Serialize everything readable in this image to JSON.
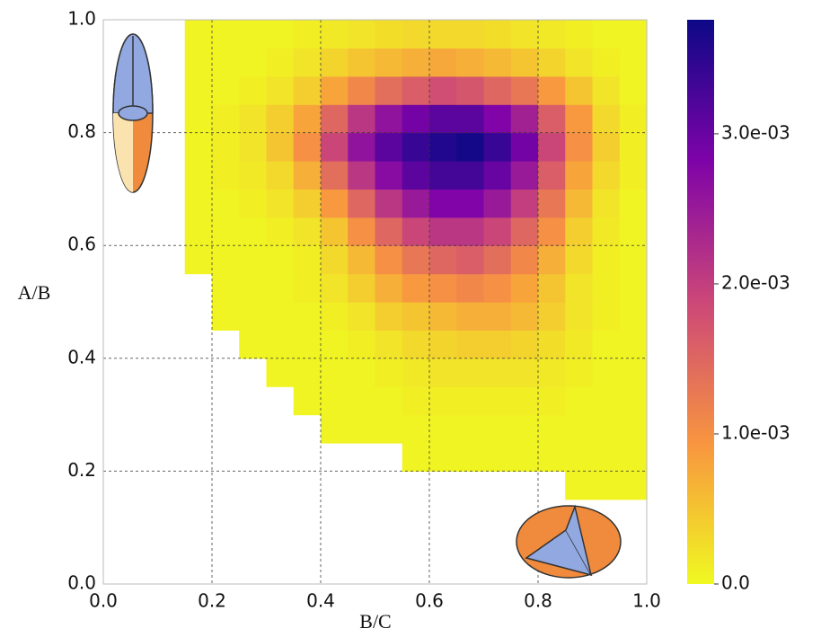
{
  "chart_data": {
    "type": "heatmap",
    "xlabel": "B/C",
    "ylabel": "A/B",
    "xlim": [
      0,
      1
    ],
    "ylim": [
      0,
      1
    ],
    "xticks": [
      {
        "value": 0,
        "label": "0.0"
      },
      0.2,
      0.4,
      0.6,
      0.8,
      {
        "value": 1,
        "label": "1.0"
      }
    ],
    "yticks": [
      {
        "value": 0,
        "label": "0.0"
      },
      0.2,
      0.4,
      0.6,
      0.8,
      {
        "value": 1,
        "label": "1.0"
      }
    ],
    "grid": true,
    "xbins": [
      0,
      0.05,
      0.1,
      0.15,
      0.2,
      0.25,
      0.3,
      0.35,
      0.4,
      0.45,
      0.5,
      0.55,
      0.6,
      0.65,
      0.7,
      0.75,
      0.8,
      0.85,
      0.9,
      0.95,
      1
    ],
    "ybins": [
      0,
      0.05,
      0.1,
      0.15,
      0.2,
      0.25,
      0.3,
      0.35,
      0.4,
      0.45,
      0.5,
      0.55,
      0.6,
      0.65,
      0.7,
      0.75,
      0.8,
      0.85,
      0.9,
      0.95,
      1
    ],
    "clim": [
      0,
      0.00376
    ],
    "colorbar_ticks": [
      {
        "value": 0,
        "label": "0.0"
      },
      {
        "value": 0.001,
        "label": "1.0e-03"
      },
      {
        "value": 0.002,
        "label": "2.0e-03"
      },
      {
        "value": 0.003,
        "label": "3.0e-03"
      }
    ],
    "colormap": [
      "#f0f921",
      "#f89540",
      "#cc4778",
      "#7e03a8",
      "#0d0887"
    ],
    "values": [
      [
        null,
        null,
        null,
        null,
        null,
        null,
        null,
        null,
        null,
        null,
        null,
        null,
        null,
        null,
        null,
        null,
        null,
        null,
        null,
        null
      ],
      [
        null,
        null,
        null,
        null,
        null,
        null,
        null,
        null,
        null,
        null,
        null,
        null,
        null,
        null,
        null,
        null,
        null,
        null,
        null,
        null
      ],
      [
        null,
        null,
        null,
        null,
        null,
        null,
        null,
        null,
        null,
        null,
        null,
        null,
        null,
        null,
        null,
        null,
        null,
        null,
        null,
        null
      ],
      [
        null,
        null,
        null,
        null,
        null,
        null,
        null,
        null,
        null,
        null,
        null,
        null,
        null,
        null,
        null,
        null,
        null,
        5e-05,
        5e-05,
        5e-05
      ],
      [
        null,
        null,
        null,
        null,
        null,
        null,
        null,
        null,
        null,
        null,
        null,
        5e-05,
        5e-05,
        5e-05,
        5e-05,
        5e-05,
        5e-05,
        5e-05,
        5e-05,
        5e-05
      ],
      [
        null,
        null,
        null,
        null,
        null,
        null,
        null,
        null,
        5e-05,
        5e-05,
        5e-05,
        5e-05,
        5e-05,
        5e-05,
        5e-05,
        5e-05,
        5e-05,
        5e-05,
        5e-05,
        5e-05
      ],
      [
        null,
        null,
        null,
        null,
        null,
        null,
        null,
        5e-05,
        5e-05,
        5e-05,
        5e-05,
        0.0001,
        0.0001,
        0.0001,
        0.0001,
        0.0001,
        0.0001,
        5e-05,
        5e-05,
        5e-05
      ],
      [
        null,
        null,
        null,
        null,
        null,
        null,
        5e-05,
        5e-05,
        5e-05,
        5e-05,
        0.0001,
        0.00015,
        0.0002,
        0.0002,
        0.0002,
        0.0002,
        0.00015,
        0.0001,
        5e-05,
        5e-05
      ],
      [
        null,
        null,
        null,
        null,
        null,
        5e-05,
        5e-05,
        5e-05,
        5e-05,
        0.0001,
        0.0002,
        0.0003,
        0.00035,
        0.0004,
        0.0004,
        0.00035,
        0.00025,
        0.00015,
        5e-05,
        5e-05
      ],
      [
        null,
        null,
        null,
        null,
        5e-05,
        5e-05,
        5e-05,
        5e-05,
        0.0001,
        0.0002,
        0.0004,
        0.0005,
        0.0006,
        0.0007,
        0.0007,
        0.0006,
        0.0004,
        0.0002,
        0.0001,
        5e-05
      ],
      [
        null,
        null,
        null,
        null,
        5e-05,
        5e-05,
        5e-05,
        0.0001,
        0.0002,
        0.0004,
        0.0007,
        0.0009,
        0.001,
        0.0011,
        0.001,
        0.0008,
        0.0005,
        0.0002,
        0.0001,
        5e-05
      ],
      [
        null,
        null,
        null,
        5e-05,
        5e-05,
        5e-05,
        5e-05,
        0.0001,
        0.0003,
        0.0006,
        0.001,
        0.0013,
        0.0015,
        0.0016,
        0.0014,
        0.0011,
        0.0007,
        0.0003,
        0.0001,
        5e-05
      ],
      [
        null,
        null,
        null,
        5e-05,
        5e-05,
        5e-05,
        0.0001,
        0.0002,
        0.0005,
        0.001,
        0.0015,
        0.0019,
        0.0021,
        0.0021,
        0.0019,
        0.0015,
        0.001,
        0.0004,
        0.00015,
        5e-05
      ],
      [
        null,
        null,
        null,
        5e-05,
        5e-05,
        0.0001,
        0.0002,
        0.0004,
        0.0009,
        0.0015,
        0.0021,
        0.0025,
        0.0028,
        0.0028,
        0.0025,
        0.002,
        0.0013,
        0.0006,
        0.0002,
        5e-05
      ],
      [
        null,
        null,
        null,
        5e-05,
        0.0001,
        0.00015,
        0.0003,
        0.0007,
        0.0014,
        0.0021,
        0.0027,
        0.0031,
        0.0033,
        0.0033,
        0.003,
        0.0025,
        0.0016,
        0.0008,
        0.0003,
        0.0001
      ],
      [
        null,
        null,
        null,
        5e-05,
        0.0001,
        0.0002,
        0.0005,
        0.001,
        0.0019,
        0.0026,
        0.0031,
        0.0034,
        0.0036,
        0.0037,
        0.0034,
        0.0029,
        0.0019,
        0.001,
        0.0004,
        0.0001
      ],
      [
        null,
        null,
        null,
        5e-05,
        0.0001,
        0.0002,
        0.0004,
        0.0008,
        0.0015,
        0.0021,
        0.0026,
        0.0029,
        0.0031,
        0.0031,
        0.0028,
        0.0024,
        0.0016,
        0.0009,
        0.0003,
        0.0001
      ],
      [
        null,
        null,
        null,
        5e-05,
        5e-05,
        0.0001,
        0.0002,
        0.0004,
        0.0008,
        0.0011,
        0.0014,
        0.0016,
        0.0018,
        0.0017,
        0.0015,
        0.0013,
        0.0009,
        0.0005,
        0.0002,
        5e-05
      ],
      [
        null,
        null,
        null,
        5e-05,
        5e-05,
        5e-05,
        0.0001,
        0.0002,
        0.00035,
        0.0005,
        0.0006,
        0.0007,
        0.00075,
        0.0007,
        0.0006,
        0.0005,
        0.00035,
        0.0002,
        0.0001,
        5e-05
      ],
      [
        null,
        null,
        null,
        5e-05,
        5e-05,
        5e-05,
        5e-05,
        0.0001,
        0.00015,
        0.0002,
        0.00025,
        0.0003,
        0.0003,
        0.0003,
        0.00025,
        0.0002,
        0.00015,
        0.0001,
        5e-05,
        5e-05
      ]
    ]
  }
}
